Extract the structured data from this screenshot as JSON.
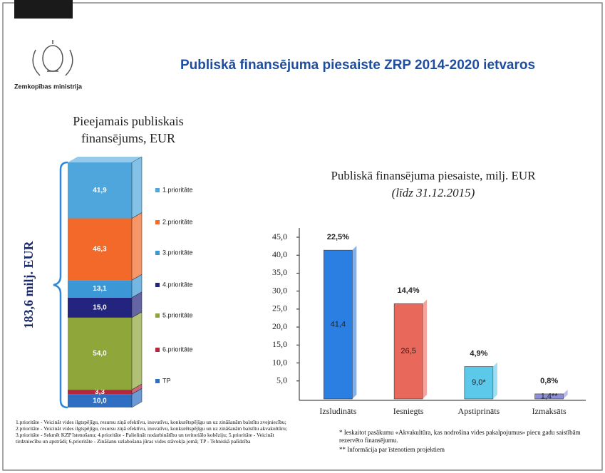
{
  "header": {
    "title": "Publiskā finansējuma piesaiste ZRP 2014-2020 ietvaros",
    "logo_text": "Zemkopības ministrija"
  },
  "chart_data": [
    {
      "type": "stacked-bar",
      "title_lines": [
        "Pieejamais publiskais",
        "finansējums, EUR"
      ],
      "total_label": "183,6 milj. EUR",
      "categories": [
        "1.prioritāte",
        "2.prioritāte",
        "3.prioritāte",
        "4.prioritāte",
        "5.prioritāte",
        "6.prioritāte",
        "TP"
      ],
      "values": [
        41.9,
        46.3,
        13.1,
        15.0,
        54.0,
        3.3,
        10.0
      ],
      "value_labels": [
        "41,9",
        "46,3",
        "13,1",
        "15,0",
        "54,0",
        "3,3",
        "10,0"
      ],
      "colors": [
        "#4ea6dc",
        "#f2692a",
        "#3c97d6",
        "#23247e",
        "#8ea63a",
        "#b3283e",
        "#2e6fc2"
      ]
    },
    {
      "type": "bar",
      "title": "Publiskā finansējuma piesaiste, milj. EUR",
      "subtitle": "(līdz 31.12.2015)",
      "categories": [
        "Izsludināts",
        "Iesniegts",
        "Apstiprināts",
        "Izmaksāts"
      ],
      "values": [
        41.4,
        26.5,
        9.0,
        1.4
      ],
      "value_labels": [
        "41,4",
        "26,5",
        "9,0*",
        "1,4**"
      ],
      "share_values": [
        22.5,
        14.4,
        4.9,
        0.8
      ],
      "share_labels": [
        "22,5%",
        "14,4%",
        "4,9%",
        "0,8%"
      ],
      "colors": [
        "#2b7fe2",
        "#e9685c",
        "#5cc8ea",
        "#8c90da"
      ],
      "ylim": [
        0,
        45
      ],
      "yticks": [
        {
          "value": 5,
          "label": "5,0"
        },
        {
          "value": 10,
          "label": "10,0"
        },
        {
          "value": 15,
          "label": "15,0"
        },
        {
          "value": 20,
          "label": "20,0"
        },
        {
          "value": 25,
          "label": "25,0"
        },
        {
          "value": 30,
          "label": "30,0"
        },
        {
          "value": 35,
          "label": "35,0"
        },
        {
          "value": 40,
          "label": "40,0"
        },
        {
          "value": 45,
          "label": "45,0"
        }
      ]
    }
  ],
  "notes": {
    "left": "1.prioritāte - Veicināt vides ilgtspējīgu, resursu ziņā efektīvu, inovatīvu, konkurētspējīgu un uz zināšanām balstītu zvejniecību; 2.prioritāte - Veicināt vides ilgtspējīgu, resursu ziņā efektīvu, inovatīvu, konkurētspējīgu un uz zināšanām balstītu akvakultūru; 3.prioritāte - Sekmēt KZP īstenošanu; 4.prioritāte - Palielināt nodarbinātību un teritoriālo kohēziju; 5.prioritāte - Veicināt tirdzniecību un apstrādi; 6.prioritāte - Zināšanu uzlabošana jūras vides stāvokļa jomā; TP - Tehniskā palīdzība",
    "right": [
      "* Ieskaitot pasākumu «Akvakultūra, kas nodrošina vides pakalpojumus» piecu gadu saistībām rezervēto finansējumu.",
      "** Informācija par īstenotiem projektiem"
    ]
  }
}
